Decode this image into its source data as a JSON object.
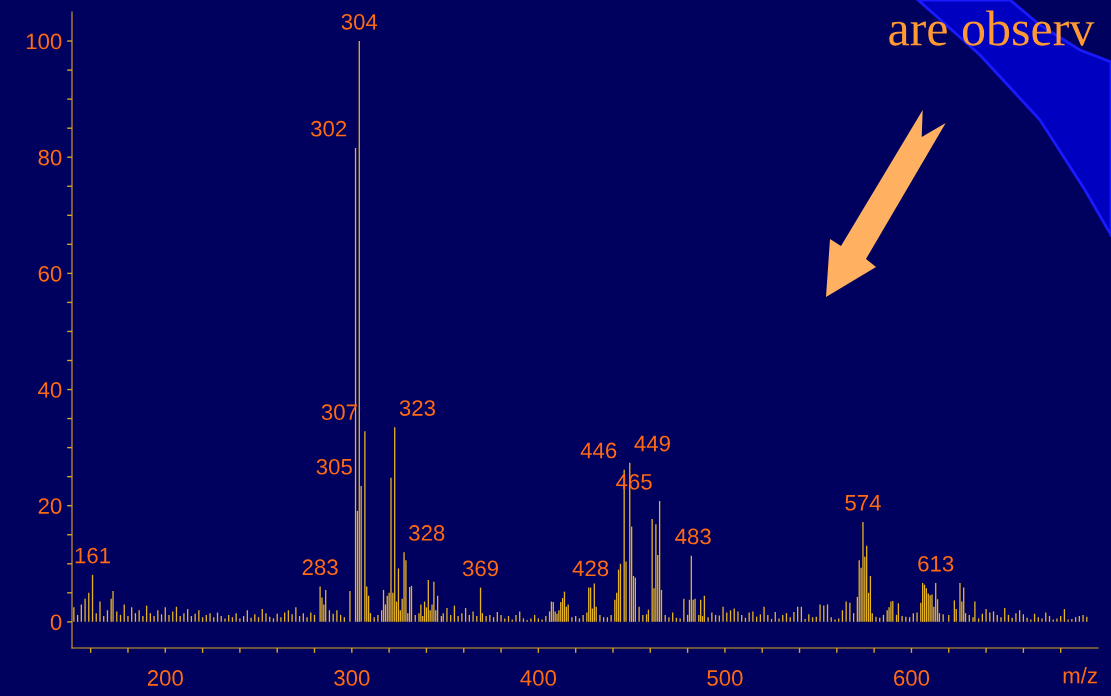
{
  "chart_data": {
    "type": "bar",
    "xlabel": "m/z",
    "color": "#e6b422",
    "x": [
      151,
      153,
      155,
      157,
      159,
      161,
      163,
      165,
      167,
      169,
      171,
      172,
      174,
      176,
      178,
      180,
      182,
      184,
      186,
      188,
      190,
      192,
      194,
      196,
      198,
      200,
      202,
      204,
      206,
      208,
      210,
      212,
      214,
      216,
      218,
      220,
      222,
      224,
      226,
      228,
      230,
      232,
      234,
      236,
      238,
      240,
      242,
      244,
      246,
      248,
      250,
      252,
      254,
      256,
      258,
      260,
      262,
      264,
      266,
      268,
      270,
      272,
      274,
      276,
      278,
      280,
      283,
      284,
      285,
      286,
      288,
      290,
      292,
      294,
      296,
      299,
      302,
      303,
      304,
      305,
      307,
      308,
      309,
      310,
      312,
      314,
      316,
      317,
      318,
      319,
      320,
      321,
      322,
      323,
      324,
      325,
      326,
      327,
      328,
      329,
      330,
      331,
      332,
      334,
      336,
      337,
      338,
      339,
      340,
      341,
      342,
      343,
      344,
      345,
      346,
      348,
      349,
      351,
      353,
      355,
      357,
      359,
      361,
      363,
      365,
      367,
      369,
      370,
      372,
      374,
      376,
      378,
      380,
      382,
      384,
      386,
      388,
      390,
      392,
      394,
      396,
      398,
      400,
      402,
      404,
      406,
      407,
      408,
      409,
      410,
      411,
      412,
      413,
      414,
      415,
      416,
      418,
      420,
      422,
      424,
      426,
      427,
      428,
      429,
      430,
      431,
      433,
      435,
      437,
      439,
      441,
      442,
      443,
      444,
      446,
      447,
      449,
      450,
      451,
      452,
      454,
      456,
      458,
      459,
      461,
      462,
      463,
      464,
      465,
      466,
      468,
      470,
      472,
      474,
      476,
      478,
      480,
      481,
      482,
      483,
      484,
      486,
      487,
      488,
      489,
      491,
      493,
      495,
      497,
      499,
      501,
      503,
      505,
      507,
      509,
      511,
      513,
      515,
      517,
      519,
      521,
      523,
      525,
      527,
      529,
      531,
      533,
      535,
      537,
      539,
      541,
      543,
      545,
      547,
      549,
      551,
      553,
      555,
      557,
      559,
      561,
      563,
      565,
      567,
      569,
      571,
      572,
      573,
      574,
      575,
      576,
      577,
      578,
      579,
      581,
      583,
      585,
      587,
      588,
      589,
      590,
      592,
      593,
      595,
      597,
      599,
      601,
      603,
      605,
      606,
      607,
      608,
      609,
      610,
      611,
      612,
      613,
      614,
      615,
      617,
      620,
      623,
      624,
      626,
      627,
      628,
      629,
      631,
      633,
      634,
      636,
      638,
      640,
      642,
      644,
      646,
      648,
      650,
      652,
      654,
      656,
      658,
      660,
      662,
      664,
      666,
      668,
      670,
      672,
      674,
      676,
      678,
      680,
      682,
      684,
      686,
      688,
      690,
      692,
      694
    ],
    "values": [
      2.5,
      1.2,
      3,
      4,
      5,
      8.1,
      1.5,
      3.5,
      1,
      2,
      4,
      5.3,
      1.8,
      1.2,
      3,
      1,
      2.5,
      1.5,
      2,
      1,
      2.8,
      1.5,
      1,
      2,
      1.3,
      2.5,
      1.2,
      1.8,
      2.6,
      1,
      1.5,
      2.2,
      1,
      1.4,
      2,
      0.8,
      1.2,
      1.5,
      0.8,
      1.6,
      1,
      0.6,
      1.2,
      0.8,
      1.5,
      0.6,
      1,
      2,
      0.7,
      1.3,
      0.8,
      2.2,
      1.5,
      0.9,
      0.6,
      1.4,
      0.8,
      1.6,
      2,
      1.3,
      2.5,
      1,
      1.5,
      0.8,
      1.6,
      1.2,
      6.1,
      4.2,
      3,
      5.5,
      2,
      1.4,
      2,
      1.2,
      0.8,
      5.3,
      81.6,
      19.1,
      100,
      23.4,
      32.8,
      6.1,
      4.5,
      1.5,
      0.8,
      1.2,
      2,
      5.5,
      3,
      4.5,
      5,
      24.8,
      5,
      33.5,
      3.5,
      9.2,
      2,
      4,
      12,
      10.6,
      1.5,
      6,
      6.2,
      1.2,
      1.5,
      3,
      1,
      3.5,
      2.5,
      7.2,
      2,
      3,
      6.9,
      2,
      4.5,
      1,
      1.5,
      2.4,
      1.2,
      2.8,
      1,
      1.5,
      2.4,
      1.2,
      1.8,
      1,
      5.9,
      1.5,
      1,
      1.2,
      0.8,
      1.7,
      1.2,
      0.6,
      1,
      0.4,
      1.2,
      1.8,
      0.6,
      0.3,
      0.6,
      1.2,
      0.6,
      0.4,
      1,
      1.8,
      3.5,
      3.4,
      1.8,
      1.4,
      2,
      3.4,
      4.1,
      5.2,
      2.6,
      3,
      0.8,
      1,
      0.6,
      1.2,
      1.6,
      5.9,
      5.9,
      2.3,
      6.6,
      2.6,
      1.2,
      0.8,
      0.8,
      1.2,
      3.8,
      5,
      9,
      10,
      26.2,
      10.4,
      27.4,
      16.4,
      7.9,
      7.6,
      2.6,
      1.2,
      1.3,
      2.1,
      17.7,
      5.8,
      16.8,
      11.5,
      20.8,
      5.5,
      1.2,
      0.8,
      1.6,
      0.7,
      0.6,
      4,
      1.2,
      3.8,
      11.4,
      3.8,
      4,
      1.2,
      3.8,
      1,
      4.5,
      0.8,
      1.6,
      1.2,
      1.1,
      2.6,
      1.6,
      2,
      2.3,
      1.8,
      1.2,
      0.7,
      1.6,
      1.8,
      0.9,
      1.3,
      2.6,
      1.2,
      0.5,
      1.7,
      0.6,
      1.2,
      1.5,
      0.8,
      1.7,
      2.6,
      2.6,
      0.5,
      1.3,
      0.8,
      0.9,
      3,
      2.8,
      3,
      0.8,
      0.4,
      0.6,
      2,
      3.5,
      3.3,
      1.5,
      4.3,
      10.6,
      9.3,
      17.2,
      11.2,
      13.1,
      5,
      7.9,
      1.5,
      0.9,
      0.7,
      1.2,
      2,
      2.5,
      3.5,
      3.6,
      1.2,
      3.2,
      1,
      0.9,
      0.8,
      1.5,
      1.6,
      3.3,
      6.7,
      6.4,
      5.8,
      4.9,
      4.6,
      4.7,
      2.6,
      6.7,
      3.9,
      1.5,
      1.3,
      1.2,
      3.7,
      2.2,
      6.7,
      3.5,
      5.9,
      1.5,
      1.2,
      0.8,
      3.5,
      0.6,
      1.4,
      2.2,
      1.6,
      1.8,
      1.2,
      0.8,
      2.4,
      1.2,
      0.7,
      1.5,
      2,
      1.3,
      0.7,
      0.4,
      1.4,
      0.8,
      0.6,
      1.6,
      1,
      0.4,
      0.6,
      1,
      2.2,
      0.4,
      0.5,
      0.8,
      1,
      1.2,
      0.9
    ],
    "xlim": [
      150,
      700
    ],
    "xticks": [
      {
        "value": 160,
        "label": null
      },
      {
        "value": 180,
        "label": null
      },
      200,
      {
        "value": 220,
        "label": null
      },
      {
        "value": 240,
        "label": null
      },
      {
        "value": 260,
        "label": null
      },
      {
        "value": 280,
        "label": null
      },
      300,
      {
        "value": 320,
        "label": null
      },
      {
        "value": 340,
        "label": null
      },
      {
        "value": 360,
        "label": null
      },
      {
        "value": 380,
        "label": null
      },
      400,
      {
        "value": 420,
        "label": null
      },
      {
        "value": 440,
        "label": null
      },
      {
        "value": 460,
        "label": null
      },
      {
        "value": 480,
        "label": null
      },
      500,
      {
        "value": 520,
        "label": null
      },
      {
        "value": 540,
        "label": null
      },
      {
        "value": 560,
        "label": null
      },
      {
        "value": 580,
        "label": null
      },
      600,
      {
        "value": 620,
        "label": null
      },
      {
        "value": 640,
        "label": null
      },
      {
        "value": 660,
        "label": null
      },
      {
        "value": 680,
        "label": null
      }
    ],
    "ylim": [
      -4.5,
      105
    ],
    "yticks": [
      0,
      {
        "value": 5,
        "label": null
      },
      {
        "value": 10,
        "label": null
      },
      {
        "value": 15,
        "label": null
      },
      20,
      {
        "value": 25,
        "label": null
      },
      {
        "value": 30,
        "label": null
      },
      {
        "value": 35,
        "label": null
      },
      40,
      {
        "value": 45,
        "label": null
      },
      {
        "value": 50,
        "label": null
      },
      {
        "value": 55,
        "label": null
      },
      60,
      {
        "value": 65,
        "label": null
      },
      {
        "value": 70,
        "label": null
      },
      {
        "value": 75,
        "label": null
      },
      80,
      {
        "value": 85,
        "label": null
      },
      {
        "value": 90,
        "label": null
      },
      {
        "value": 95,
        "label": null
      },
      100
    ],
    "annotations": [
      {
        "text": "161",
        "x": 161,
        "y": 8.1
      },
      {
        "text": "283",
        "x": 283,
        "y": 6.1
      },
      {
        "text": "302",
        "x": 302,
        "y": 81.6
      },
      {
        "text": "304",
        "x": 304,
        "y": 100
      },
      {
        "text": "305",
        "x": 305,
        "y": 23.4
      },
      {
        "text": "307",
        "x": 307,
        "y": 32.8
      },
      {
        "text": "323",
        "x": 323,
        "y": 33.5
      },
      {
        "text": "328",
        "x": 328,
        "y": 12
      },
      {
        "text": "369",
        "x": 369,
        "y": 5.9
      },
      {
        "text": "428",
        "x": 428,
        "y": 5.9
      },
      {
        "text": "446",
        "x": 446,
        "y": 26.2
      },
      {
        "text": "449",
        "x": 449,
        "y": 27.4
      },
      {
        "text": "465",
        "x": 465,
        "y": 20.8
      },
      {
        "text": "483",
        "x": 483,
        "y": 11.4
      },
      {
        "text": "574",
        "x": 574,
        "y": 17.2
      },
      {
        "text": "613",
        "x": 613,
        "y": 6.7
      },
      "are observ"
    ]
  }
}
